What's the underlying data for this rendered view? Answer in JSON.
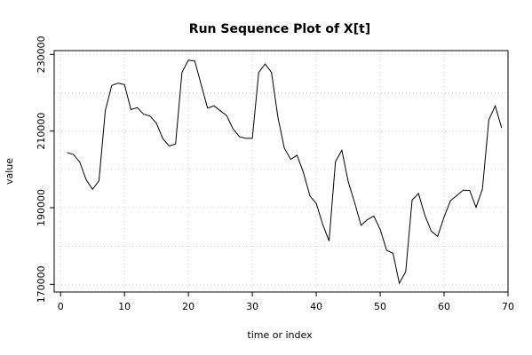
{
  "chart_data": {
    "type": "line",
    "title": "Run Sequence Plot of X[t]",
    "xlabel": "time or index",
    "ylabel": "value",
    "xlim": [
      -1,
      70
    ],
    "ylim": [
      168000,
      231000
    ],
    "x_ticks": [
      0,
      10,
      20,
      30,
      40,
      50,
      60,
      70
    ],
    "x_tick_labels": [
      "0",
      "10",
      "20",
      "30",
      "40",
      "50",
      "60",
      "70"
    ],
    "y_ticks": [
      170000,
      190000,
      210000,
      230000
    ],
    "y_tick_labels": [
      "170000",
      "190000",
      "210000",
      "230000"
    ],
    "grid_y": [
      170000,
      180000,
      190000,
      200000,
      210000,
      220000,
      230000
    ],
    "grid_x": [
      0,
      10,
      20,
      30,
      40,
      50,
      60,
      70
    ],
    "grid": true,
    "line_color": "#000000",
    "grid_color": "#cccccc",
    "series": [
      {
        "x": [
          1,
          2,
          3,
          4,
          5,
          6,
          7,
          8,
          9,
          10,
          11,
          12,
          13,
          14,
          15,
          16,
          17,
          18,
          19,
          20,
          21,
          22,
          23,
          24,
          25,
          26,
          27,
          28,
          29,
          30,
          31,
          32,
          33,
          34,
          35,
          36,
          37,
          38,
          39,
          40,
          41,
          42,
          43,
          44,
          45,
          46,
          47,
          48,
          49,
          50,
          51,
          52,
          53,
          54,
          55,
          56,
          57,
          58,
          59,
          60,
          61,
          62,
          63,
          64,
          65,
          66,
          67,
          68,
          69
        ],
        "values": [
          204400,
          203900,
          201900,
          197300,
          194800,
          197000,
          215400,
          221900,
          222500,
          222100,
          215600,
          216100,
          214400,
          213900,
          212000,
          208000,
          206100,
          206600,
          225300,
          228500,
          228300,
          222100,
          216000,
          216600,
          215300,
          214000,
          210500,
          208500,
          208100,
          208100,
          225300,
          227500,
          225300,
          213600,
          205600,
          202600,
          203700,
          199100,
          193100,
          191100,
          185700,
          181300,
          202000,
          205000,
          196800,
          191300,
          185400,
          186900,
          187800,
          184300,
          178900,
          178100,
          170300,
          173300,
          192000,
          193700,
          188000,
          183900,
          182500,
          187600,
          191800,
          193200,
          194600,
          194500,
          190100,
          194900,
          212900,
          216600,
          210800
        ]
      }
    ]
  }
}
